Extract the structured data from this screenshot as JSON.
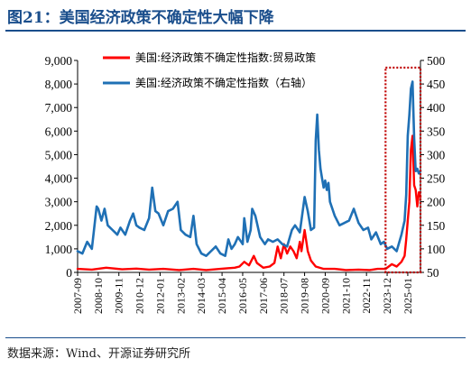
{
  "figure": {
    "title": "图21：美国经济政策不确定性大幅下降",
    "source": "数据来源：Wind、开源证券研究所"
  },
  "chart_data": {
    "type": "line",
    "title": "图21：美国经济政策不确定性大幅下降",
    "y_left": {
      "ylim": [
        0,
        9000
      ],
      "ticks": [
        0,
        1000,
        2000,
        3000,
        4000,
        5000,
        6000,
        7000,
        8000,
        9000
      ],
      "tick_labels": [
        "0",
        "1,000",
        "2,000",
        "3,000",
        "4,000",
        "5,000",
        "6,000",
        "7,000",
        "8,000",
        "9,000"
      ]
    },
    "y_right": {
      "ylim": [
        50,
        500
      ],
      "ticks": [
        50,
        100,
        150,
        200,
        250,
        300,
        350,
        400,
        450,
        500
      ],
      "tick_labels": [
        "50",
        "100",
        "150",
        "200",
        "250",
        "300",
        "350",
        "400",
        "450",
        "500"
      ]
    },
    "x_range": [
      "2007-09",
      "2025-09"
    ],
    "x_tick_labels": [
      "2007-09",
      "2008-10",
      "2009-11",
      "2010-12",
      "2012-01",
      "2013-02",
      "2014-03",
      "2015-04",
      "2016-05",
      "2017-06",
      "2018-07",
      "2019-08",
      "2020-09",
      "2021-10",
      "2022-11",
      "2023-12",
      "2025-01"
    ],
    "legend_position": "top-center",
    "grid": false,
    "highlight_box": {
      "x_start": "2023-11",
      "x_end": "2025-09"
    },
    "series": [
      {
        "name": "美国:经济政策不确定性指数:贸易政策",
        "axis": "left",
        "color": "#ff0000",
        "points": [
          [
            "2007-09",
            150
          ],
          [
            "2008-06",
            120
          ],
          [
            "2009-03",
            200
          ],
          [
            "2010-01",
            130
          ],
          [
            "2010-10",
            160
          ],
          [
            "2011-06",
            120
          ],
          [
            "2012-03",
            150
          ],
          [
            "2013-01",
            100
          ],
          [
            "2013-10",
            150
          ],
          [
            "2014-06",
            100
          ],
          [
            "2015-03",
            150
          ],
          [
            "2015-12",
            200
          ],
          [
            "2016-03",
            250
          ],
          [
            "2016-06",
            450
          ],
          [
            "2016-09",
            300
          ],
          [
            "2016-12",
            700
          ],
          [
            "2017-02",
            400
          ],
          [
            "2017-06",
            200
          ],
          [
            "2017-10",
            250
          ],
          [
            "2018-01",
            400
          ],
          [
            "2018-03",
            1100
          ],
          [
            "2018-05",
            600
          ],
          [
            "2018-07",
            1200
          ],
          [
            "2018-09",
            800
          ],
          [
            "2018-11",
            1100
          ],
          [
            "2019-01",
            900
          ],
          [
            "2019-03",
            600
          ],
          [
            "2019-05",
            1300
          ],
          [
            "2019-06",
            900
          ],
          [
            "2019-08",
            1800
          ],
          [
            "2019-10",
            900
          ],
          [
            "2019-12",
            500
          ],
          [
            "2020-03",
            250
          ],
          [
            "2020-08",
            150
          ],
          [
            "2021-03",
            150
          ],
          [
            "2021-10",
            100
          ],
          [
            "2022-06",
            120
          ],
          [
            "2023-01",
            100
          ],
          [
            "2023-06",
            150
          ],
          [
            "2023-11",
            150
          ],
          [
            "2024-03",
            350
          ],
          [
            "2024-06",
            250
          ],
          [
            "2024-09",
            450
          ],
          [
            "2024-11",
            700
          ],
          [
            "2024-12",
            1400
          ],
          [
            "2025-01",
            2200
          ],
          [
            "2025-02",
            3000
          ],
          [
            "2025-03",
            5200
          ],
          [
            "2025-04",
            5800
          ],
          [
            "2025-05",
            3700
          ],
          [
            "2025-06",
            3500
          ],
          [
            "2025-07",
            2800
          ],
          [
            "2025-08",
            3400
          ],
          [
            "2025-09",
            3200
          ]
        ]
      },
      {
        "name": "美国:经济政策不确定性指数（右轴）",
        "axis": "right",
        "color": "#1f70b5",
        "points": [
          [
            "2007-09",
            95
          ],
          [
            "2007-12",
            90
          ],
          [
            "2008-03",
            115
          ],
          [
            "2008-06",
            100
          ],
          [
            "2008-09",
            190
          ],
          [
            "2008-10",
            185
          ],
          [
            "2008-12",
            160
          ],
          [
            "2009-02",
            185
          ],
          [
            "2009-04",
            150
          ],
          [
            "2009-07",
            140
          ],
          [
            "2009-10",
            130
          ],
          [
            "2009-12",
            145
          ],
          [
            "2010-03",
            130
          ],
          [
            "2010-06",
            160
          ],
          [
            "2010-08",
            175
          ],
          [
            "2010-10",
            150
          ],
          [
            "2010-12",
            145
          ],
          [
            "2011-03",
            140
          ],
          [
            "2011-06",
            165
          ],
          [
            "2011-08",
            230
          ],
          [
            "2011-10",
            180
          ],
          [
            "2011-12",
            175
          ],
          [
            "2012-03",
            150
          ],
          [
            "2012-06",
            180
          ],
          [
            "2012-09",
            185
          ],
          [
            "2012-12",
            200
          ],
          [
            "2013-02",
            140
          ],
          [
            "2013-05",
            130
          ],
          [
            "2013-08",
            125
          ],
          [
            "2013-10",
            170
          ],
          [
            "2013-12",
            110
          ],
          [
            "2014-03",
            90
          ],
          [
            "2014-06",
            85
          ],
          [
            "2014-09",
            95
          ],
          [
            "2014-12",
            105
          ],
          [
            "2015-03",
            90
          ],
          [
            "2015-06",
            85
          ],
          [
            "2015-08",
            120
          ],
          [
            "2015-10",
            100
          ],
          [
            "2015-12",
            110
          ],
          [
            "2016-02",
            125
          ],
          [
            "2016-05",
            110
          ],
          [
            "2016-06",
            165
          ],
          [
            "2016-08",
            115
          ],
          [
            "2016-10",
            140
          ],
          [
            "2016-11",
            185
          ],
          [
            "2017-01",
            170
          ],
          [
            "2017-04",
            125
          ],
          [
            "2017-07",
            110
          ],
          [
            "2017-09",
            120
          ],
          [
            "2017-12",
            115
          ],
          [
            "2018-03",
            120
          ],
          [
            "2018-06",
            110
          ],
          [
            "2018-09",
            105
          ],
          [
            "2018-12",
            140
          ],
          [
            "2019-02",
            150
          ],
          [
            "2019-05",
            135
          ],
          [
            "2019-08",
            210
          ],
          [
            "2019-10",
            180
          ],
          [
            "2019-12",
            140
          ],
          [
            "2020-02",
            145
          ],
          [
            "2020-03",
            330
          ],
          [
            "2020-04",
            385
          ],
          [
            "2020-05",
            310
          ],
          [
            "2020-06",
            270
          ],
          [
            "2020-07",
            250
          ],
          [
            "2020-08",
            230
          ],
          [
            "2020-09",
            245
          ],
          [
            "2020-10",
            225
          ],
          [
            "2020-11",
            240
          ],
          [
            "2020-12",
            200
          ],
          [
            "2021-03",
            170
          ],
          [
            "2021-06",
            150
          ],
          [
            "2021-09",
            155
          ],
          [
            "2021-12",
            160
          ],
          [
            "2022-03",
            185
          ],
          [
            "2022-06",
            155
          ],
          [
            "2022-09",
            140
          ],
          [
            "2022-12",
            145
          ],
          [
            "2023-02",
            120
          ],
          [
            "2023-05",
            135
          ],
          [
            "2023-08",
            110
          ],
          [
            "2023-10",
            115
          ],
          [
            "2023-12",
            100
          ],
          [
            "2024-03",
            105
          ],
          [
            "2024-06",
            95
          ],
          [
            "2024-09",
            130
          ],
          [
            "2024-11",
            160
          ],
          [
            "2024-12",
            215
          ],
          [
            "2025-01",
            340
          ],
          [
            "2025-02",
            385
          ],
          [
            "2025-03",
            440
          ],
          [
            "2025-04",
            455
          ],
          [
            "2025-05",
            335
          ],
          [
            "2025-06",
            265
          ],
          [
            "2025-07",
            270
          ],
          [
            "2025-08",
            260
          ],
          [
            "2025-09",
            265
          ]
        ]
      }
    ]
  }
}
